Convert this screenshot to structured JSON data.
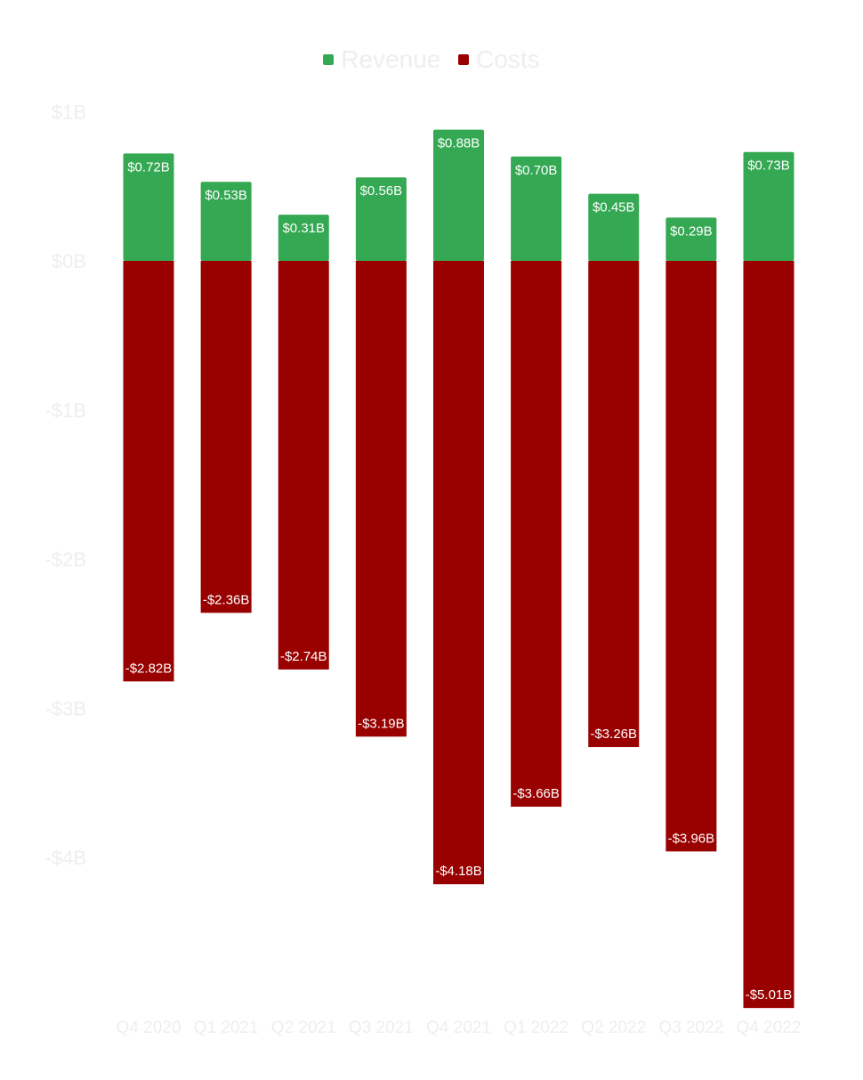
{
  "chart_data": {
    "type": "bar",
    "stacked": true,
    "categories": [
      "Q4 2020",
      "Q1 2021",
      "Q2 2021",
      "Q3 2021",
      "Q4 2021",
      "Q1 2022",
      "Q2 2022",
      "Q3 2022",
      "Q4 2022"
    ],
    "series": [
      {
        "name": "Revenue",
        "color": "#34a853",
        "values": [
          0.72,
          0.53,
          0.31,
          0.56,
          0.88,
          0.7,
          0.45,
          0.29,
          0.73
        ],
        "labels": [
          "$0.72B",
          "$0.53B",
          "$0.31B",
          "$0.56B",
          "$0.88B",
          "$0.70B",
          "$0.45B",
          "$0.29B",
          "$0.73B"
        ]
      },
      {
        "name": "Costs",
        "color": "#990000",
        "values": [
          -2.82,
          -2.36,
          -2.74,
          -3.19,
          -4.18,
          -3.66,
          -3.26,
          -3.96,
          -5.01
        ],
        "labels": [
          "-$2.82B",
          "-$2.36B",
          "-$2.74B",
          "-$3.19B",
          "-$4.18B",
          "-$3.66B",
          "-$3.26B",
          "-$3.96B",
          "-$5.01B"
        ]
      }
    ],
    "y_ticks": [
      1,
      0,
      -1,
      -2,
      -3,
      -4
    ],
    "y_tick_labels": [
      "$1B",
      "$0B",
      "-$1B",
      "-$2B",
      "-$3B",
      "-$4B"
    ],
    "ylim": [
      -5.01,
      1
    ],
    "legend_position": "top-center",
    "grid": false,
    "title": "",
    "xlabel": "",
    "ylabel": ""
  }
}
